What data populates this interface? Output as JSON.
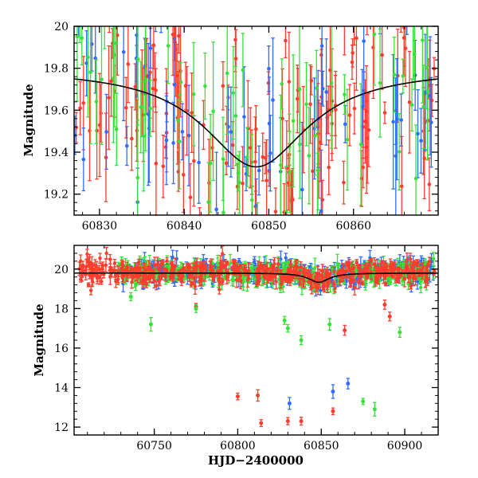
{
  "chart_data": [
    {
      "id": "top",
      "type": "scatter",
      "xlabel": "",
      "ylabel": "Magnitude",
      "xlim": [
        60827,
        60870
      ],
      "ylim": [
        20.0,
        19.1
      ],
      "y_inverted": true,
      "xticks": [
        60830,
        60840,
        60850,
        60860
      ],
      "yticks": [
        19.2,
        19.4,
        19.6,
        19.8,
        20
      ],
      "ytick_labels": [
        "19.2",
        "19.4",
        "19.6",
        "19.8",
        "20"
      ],
      "grid": false,
      "model_curve": {
        "color": "#000000",
        "t0": 60848.5,
        "peak_mag": 19.33,
        "base_mag": 19.8,
        "width_days": 7.5
      },
      "series": [
        {
          "color": "#ff3d2e",
          "count": 150,
          "x_range": [
            60827,
            60870
          ],
          "mag_center": 19.55,
          "err_range": [
            0.05,
            0.25
          ]
        },
        {
          "color": "#2f6cff",
          "count": 60,
          "x_range": [
            60827,
            60870
          ],
          "mag_center": 19.55,
          "err_range": [
            0.08,
            0.35
          ]
        },
        {
          "color": "#39e13a",
          "count": 70,
          "x_range": [
            60827,
            60870
          ],
          "mag_center": 19.55,
          "err_range": [
            0.08,
            0.35
          ]
        }
      ]
    },
    {
      "id": "bottom",
      "type": "scatter",
      "xlabel": "HJD−2400000",
      "ylabel": "Magnitude",
      "xlim": [
        60702,
        60920
      ],
      "ylim": [
        21.2,
        11.6
      ],
      "y_inverted": true,
      "xticks": [
        60750,
        60800,
        60850,
        60900
      ],
      "yticks": [
        12,
        14,
        16,
        18,
        20
      ],
      "grid": false,
      "model_curve": {
        "color": "#000000",
        "t0": 60848.5,
        "peak_mag": 19.33,
        "base_mag": 19.8,
        "width_days": 7.5
      },
      "outliers": [
        {
          "x": 60775,
          "y": 18.1,
          "color": "#ff3d2e"
        },
        {
          "x": 60800,
          "y": 13.55,
          "color": "#ff3d2e"
        },
        {
          "x": 60812,
          "y": 13.6,
          "color": "#ff3d2e"
        },
        {
          "x": 60814,
          "y": 12.2,
          "color": "#ff3d2e"
        },
        {
          "x": 60830,
          "y": 12.3,
          "color": "#ff3d2e"
        },
        {
          "x": 60838,
          "y": 12.3,
          "color": "#ff3d2e"
        },
        {
          "x": 60857,
          "y": 12.8,
          "color": "#ff3d2e"
        },
        {
          "x": 60864,
          "y": 16.9,
          "color": "#ff3d2e"
        },
        {
          "x": 60891,
          "y": 17.6,
          "color": "#ff3d2e"
        },
        {
          "x": 60888,
          "y": 18.2,
          "color": "#ff3d2e"
        },
        {
          "x": 60831,
          "y": 13.2,
          "color": "#2f6cff"
        },
        {
          "x": 60857,
          "y": 13.8,
          "color": "#2f6cff"
        },
        {
          "x": 60866,
          "y": 14.2,
          "color": "#2f6cff"
        },
        {
          "x": 60748,
          "y": 17.2,
          "color": "#39e13a"
        },
        {
          "x": 60828,
          "y": 17.4,
          "color": "#39e13a"
        },
        {
          "x": 60830,
          "y": 17.0,
          "color": "#39e13a"
        },
        {
          "x": 60838,
          "y": 16.4,
          "color": "#39e13a"
        },
        {
          "x": 60855,
          "y": 17.2,
          "color": "#39e13a"
        },
        {
          "x": 60875,
          "y": 13.3,
          "color": "#39e13a"
        },
        {
          "x": 60882,
          "y": 12.9,
          "color": "#39e13a"
        },
        {
          "x": 60897,
          "y": 16.8,
          "color": "#39e13a"
        },
        {
          "x": 60775,
          "y": 18.0,
          "color": "#39e13a"
        },
        {
          "x": 60736,
          "y": 18.6,
          "color": "#39e13a"
        }
      ],
      "series": [
        {
          "color": "#2f6cff",
          "count": 320,
          "x_range": [
            60728,
            60918
          ],
          "mag_center": 19.8,
          "err_range": [
            0.1,
            0.45
          ]
        },
        {
          "color": "#39e13a",
          "count": 320,
          "x_range": [
            60728,
            60918
          ],
          "mag_center": 19.85,
          "err_range": [
            0.1,
            0.5
          ]
        },
        {
          "color": "#ff3d2e",
          "count": 460,
          "x_range": [
            60705,
            60918
          ],
          "mag_center": 19.85,
          "err_range": [
            0.08,
            0.4
          ]
        }
      ]
    }
  ]
}
